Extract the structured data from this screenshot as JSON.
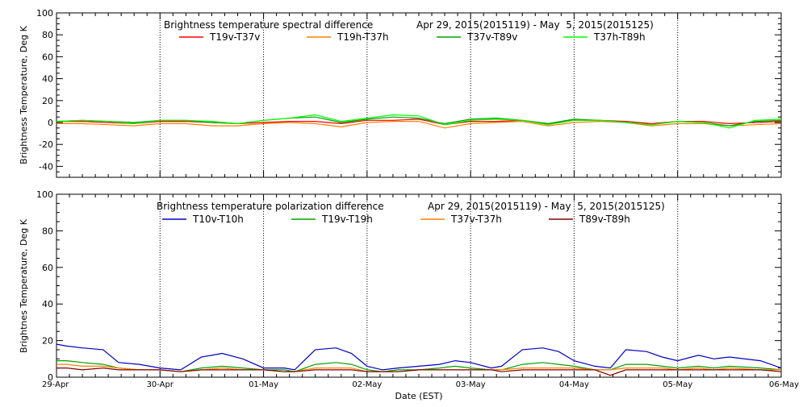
{
  "xlabel": "Date (EST)",
  "x_tick_labels": [
    "29-Apr",
    "30-Apr",
    "01-May",
    "02-May",
    "03-May",
    "04-May",
    "05-May",
    "06-May"
  ],
  "chart_data": [
    {
      "type": "line",
      "title": "Brightness temperature spectral difference",
      "date_range": "Apr 29, 2015(2015119) - May  5, 2015(2015125)",
      "ylabel": "Brightness Temperature, Deg K",
      "ylim": [
        -50,
        100
      ],
      "y_ticks": [
        -40,
        -20,
        0,
        20,
        40,
        60,
        80,
        100
      ],
      "x": [
        0,
        0.25,
        0.5,
        0.75,
        1,
        1.25,
        1.5,
        1.75,
        2,
        2.25,
        2.5,
        2.75,
        3,
        3.25,
        3.5,
        3.75,
        4,
        4.25,
        4.5,
        4.75,
        5,
        5.25,
        5.5,
        5.75,
        6,
        6.25,
        6.5,
        6.75,
        7
      ],
      "x_units": "days since 29-Apr",
      "series": [
        {
          "name": "T19v-T37v",
          "color": "#ff0000",
          "values": [
            1,
            1,
            0,
            -1,
            1,
            1,
            0,
            -1,
            0,
            1,
            1,
            -1,
            2,
            2,
            3,
            -2,
            1,
            1,
            2,
            -1,
            2,
            2,
            1,
            -1,
            1,
            1,
            -1,
            0,
            1
          ]
        },
        {
          "name": "T19h-T37h",
          "color": "#ff8000",
          "values": [
            -1,
            -1,
            -2,
            -3,
            -1,
            -1,
            -3,
            -3,
            -1,
            0,
            -1,
            -4,
            0,
            1,
            1,
            -5,
            -1,
            0,
            1,
            -3,
            0,
            1,
            0,
            -3,
            -1,
            -1,
            -3,
            -2,
            -1
          ]
        },
        {
          "name": "T37v-T89v",
          "color": "#00a000",
          "values": [
            1,
            2,
            1,
            0,
            2,
            2,
            0,
            -1,
            2,
            4,
            5,
            0,
            3,
            5,
            4,
            -1,
            3,
            4,
            2,
            -1,
            3,
            2,
            0,
            -2,
            1,
            0,
            -3,
            1,
            2
          ]
        },
        {
          "name": "T37h-T89h",
          "color": "#00ff00",
          "values": [
            1,
            2,
            1,
            -1,
            2,
            2,
            1,
            -1,
            2,
            4,
            7,
            1,
            4,
            7,
            6,
            -2,
            2,
            3,
            2,
            -2,
            2,
            2,
            0,
            -2,
            1,
            0,
            -5,
            2,
            3
          ]
        }
      ]
    },
    {
      "type": "line",
      "title": "Brightness temperature polarization difference",
      "date_range": "Apr 29, 2015(2015119) - May  5, 2015(2015125)",
      "ylabel": "Brightnes Temperature, Deg K",
      "ylim": [
        0,
        100
      ],
      "y_ticks": [
        0,
        20,
        40,
        60,
        80,
        100
      ],
      "x": [
        0,
        0.1,
        0.25,
        0.45,
        0.6,
        0.8,
        1,
        1.2,
        1.4,
        1.6,
        1.8,
        2,
        2.2,
        2.3,
        2.5,
        2.7,
        2.85,
        3,
        3.15,
        3.3,
        3.5,
        3.7,
        3.85,
        4,
        4.2,
        4.3,
        4.5,
        4.7,
        4.85,
        5,
        5.2,
        5.35,
        5.5,
        5.7,
        5.85,
        6,
        6.2,
        6.35,
        6.5,
        6.8,
        7
      ],
      "x_units": "days since 29-Apr",
      "series": [
        {
          "name": "T10v-T10h",
          "color": "#0000c0",
          "values": [
            18,
            17,
            16,
            15,
            8,
            7,
            5,
            4,
            11,
            13,
            10,
            5,
            5,
            4,
            15,
            16,
            13,
            6,
            4,
            5,
            6,
            7,
            9,
            8,
            5,
            6,
            15,
            16,
            14,
            9,
            6,
            5,
            15,
            14,
            11,
            9,
            12,
            10,
            11,
            9,
            5
          ]
        },
        {
          "name": "T19v-T19h",
          "color": "#00a000",
          "values": [
            9,
            9,
            8,
            7,
            5,
            4,
            4,
            3,
            5,
            6,
            5,
            4,
            4,
            3,
            7,
            8,
            7,
            4,
            3,
            4,
            4,
            5,
            6,
            5,
            4,
            4,
            7,
            8,
            7,
            6,
            4,
            4,
            7,
            7,
            6,
            5,
            6,
            5,
            6,
            5,
            4
          ]
        },
        {
          "name": "T37v-T37h",
          "color": "#ff8000",
          "values": [
            7,
            7,
            6,
            6,
            5,
            4,
            4,
            3,
            4,
            5,
            4,
            4,
            3,
            3,
            5,
            5,
            5,
            3,
            3,
            3,
            4,
            4,
            4,
            4,
            4,
            4,
            5,
            5,
            5,
            5,
            4,
            4,
            5,
            5,
            5,
            4,
            5,
            4,
            5,
            4,
            4
          ]
        },
        {
          "name": "T89v-T89h",
          "color": "#800000",
          "values": [
            5,
            5,
            4,
            5,
            4,
            4,
            4,
            3,
            4,
            4,
            4,
            4,
            3,
            3,
            4,
            4,
            4,
            3,
            3,
            3,
            4,
            4,
            4,
            4,
            4,
            3,
            4,
            4,
            4,
            4,
            4,
            1,
            4,
            4,
            4,
            4,
            4,
            4,
            4,
            4,
            3
          ]
        }
      ]
    }
  ]
}
